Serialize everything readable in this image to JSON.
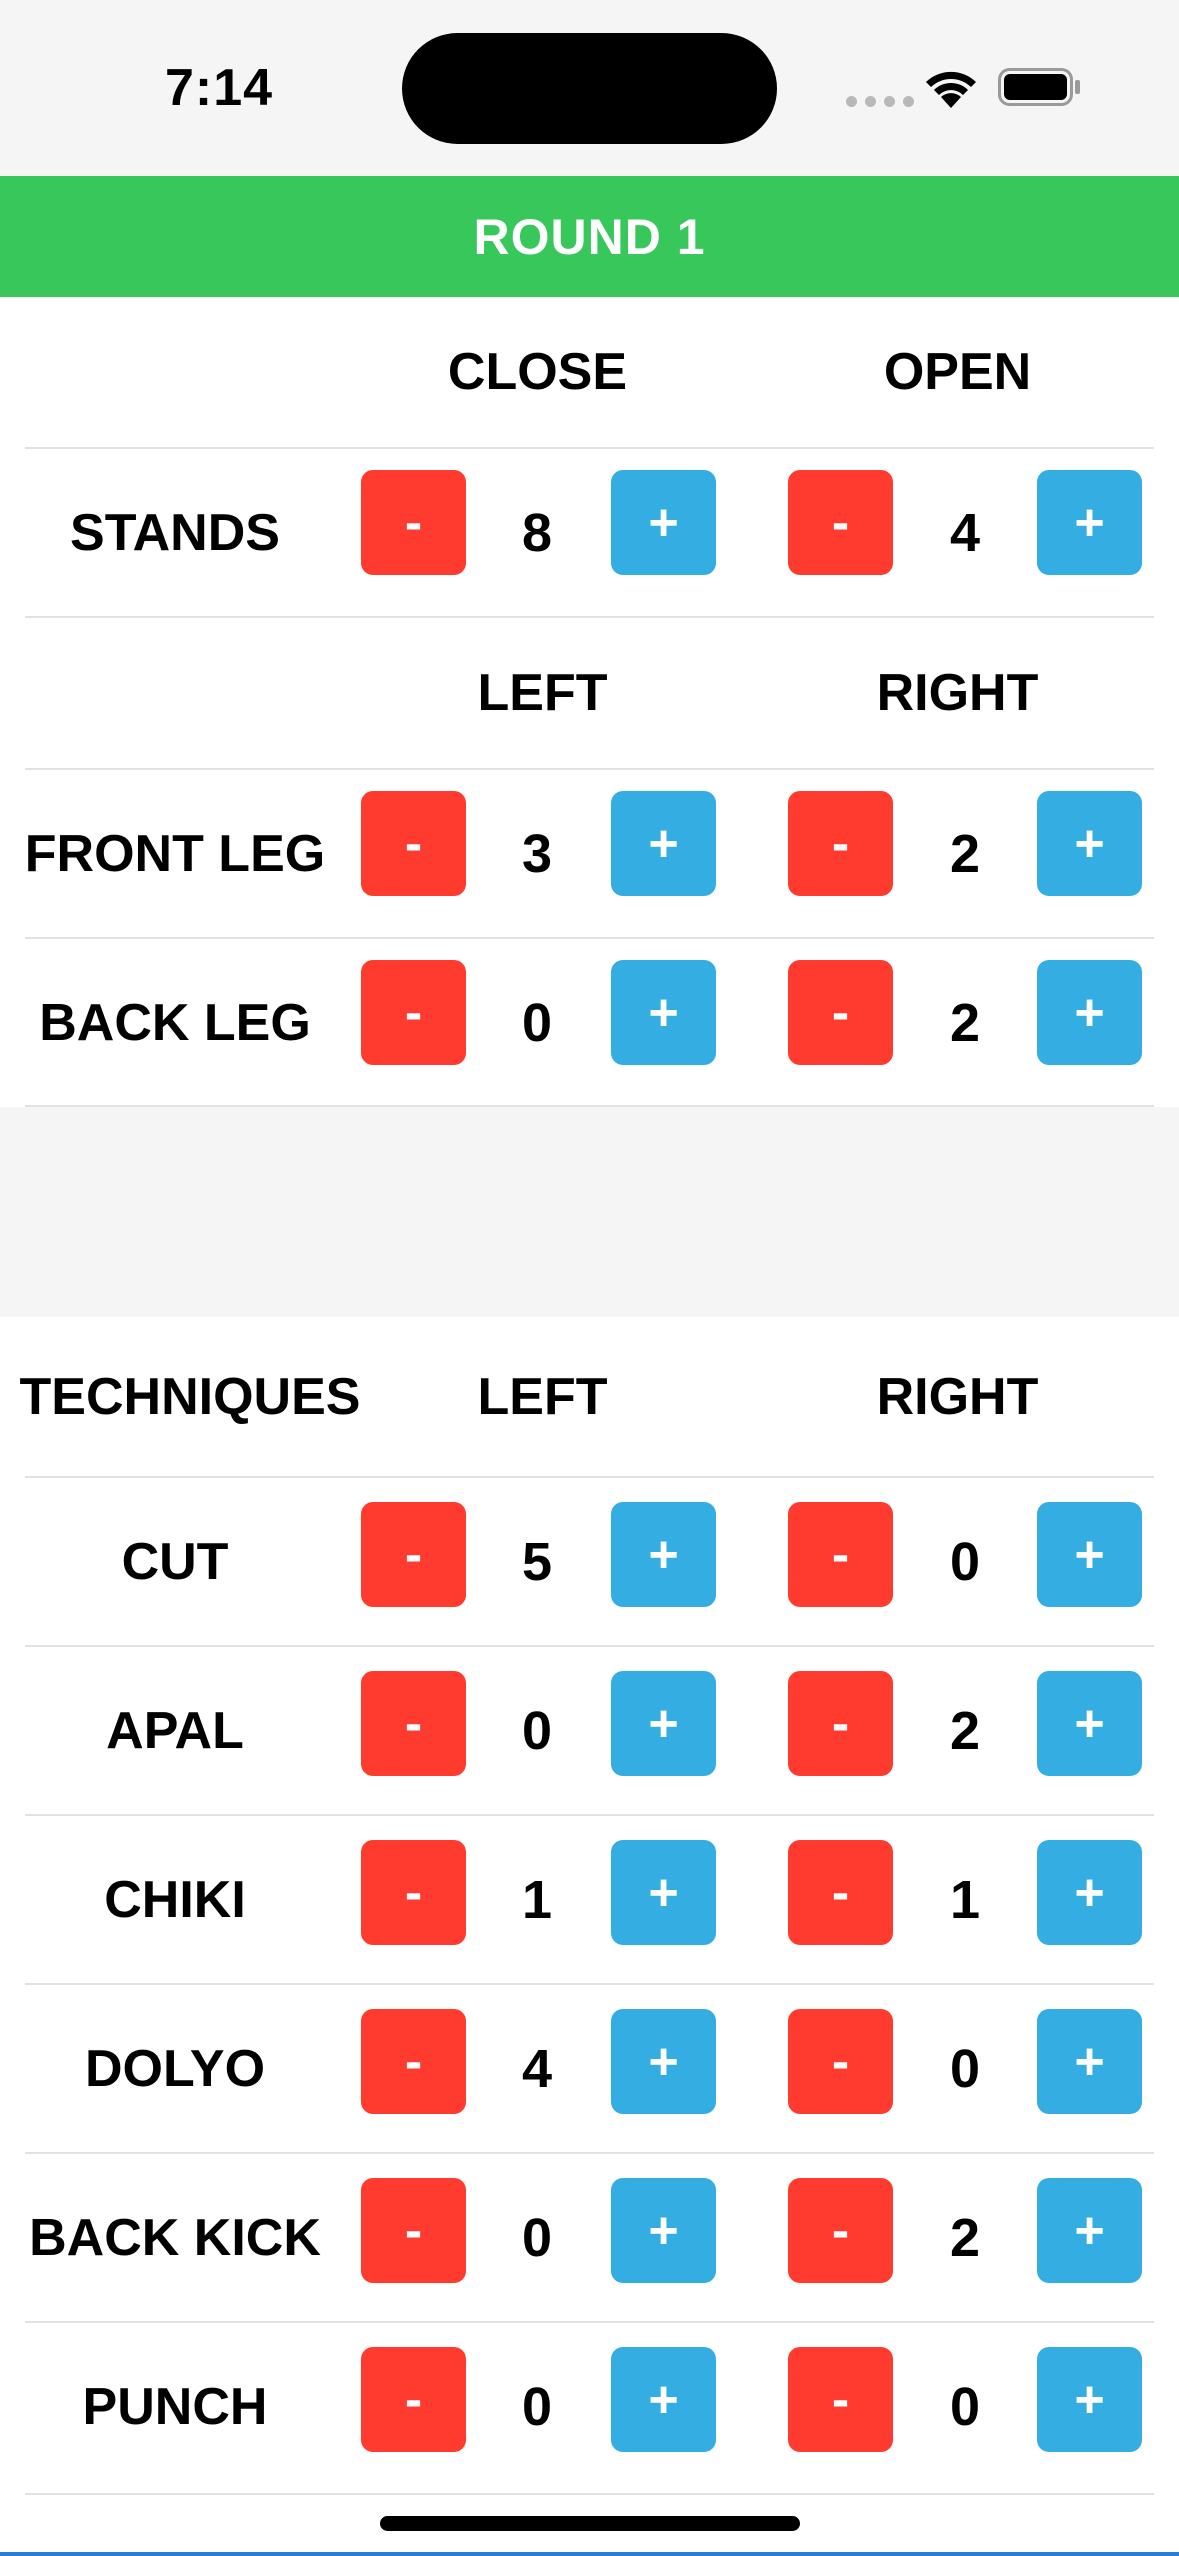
{
  "status_bar": {
    "time": "7:14",
    "icons": [
      "signal-dots-icon",
      "wifi-icon",
      "battery-icon"
    ]
  },
  "round": {
    "title": "ROUND 1"
  },
  "colors": {
    "round_bar": "#37c75b",
    "minus_button": "#ff3b30",
    "plus_button": "#34ade3"
  },
  "stands_section": {
    "header": {
      "label": "",
      "col1": "CLOSE",
      "col2": "OPEN"
    },
    "rows": [
      {
        "label": "STANDS",
        "left": "8",
        "right": "4"
      }
    ]
  },
  "legs_section": {
    "header": {
      "label": "",
      "col1": "LEFT",
      "col2": "RIGHT"
    },
    "rows": [
      {
        "label": "FRONT LEG",
        "left": "3",
        "right": "2"
      },
      {
        "label": "BACK LEG",
        "left": "0",
        "right": "2"
      }
    ]
  },
  "techniques_section": {
    "header": {
      "label": "TECHNIQUES",
      "col1": "LEFT",
      "col2": "RIGHT"
    },
    "rows": [
      {
        "label": "CUT",
        "left": "5",
        "right": "0"
      },
      {
        "label": "APAL",
        "left": "0",
        "right": "2"
      },
      {
        "label": "CHIKI",
        "left": "1",
        "right": "1"
      },
      {
        "label": "DOLYO",
        "left": "4",
        "right": "0"
      },
      {
        "label": "BACK KICK",
        "left": "0",
        "right": "2"
      },
      {
        "label": "PUNCH",
        "left": "0",
        "right": "0"
      }
    ]
  },
  "buttons": {
    "minus_label": "-",
    "plus_label": "+"
  }
}
